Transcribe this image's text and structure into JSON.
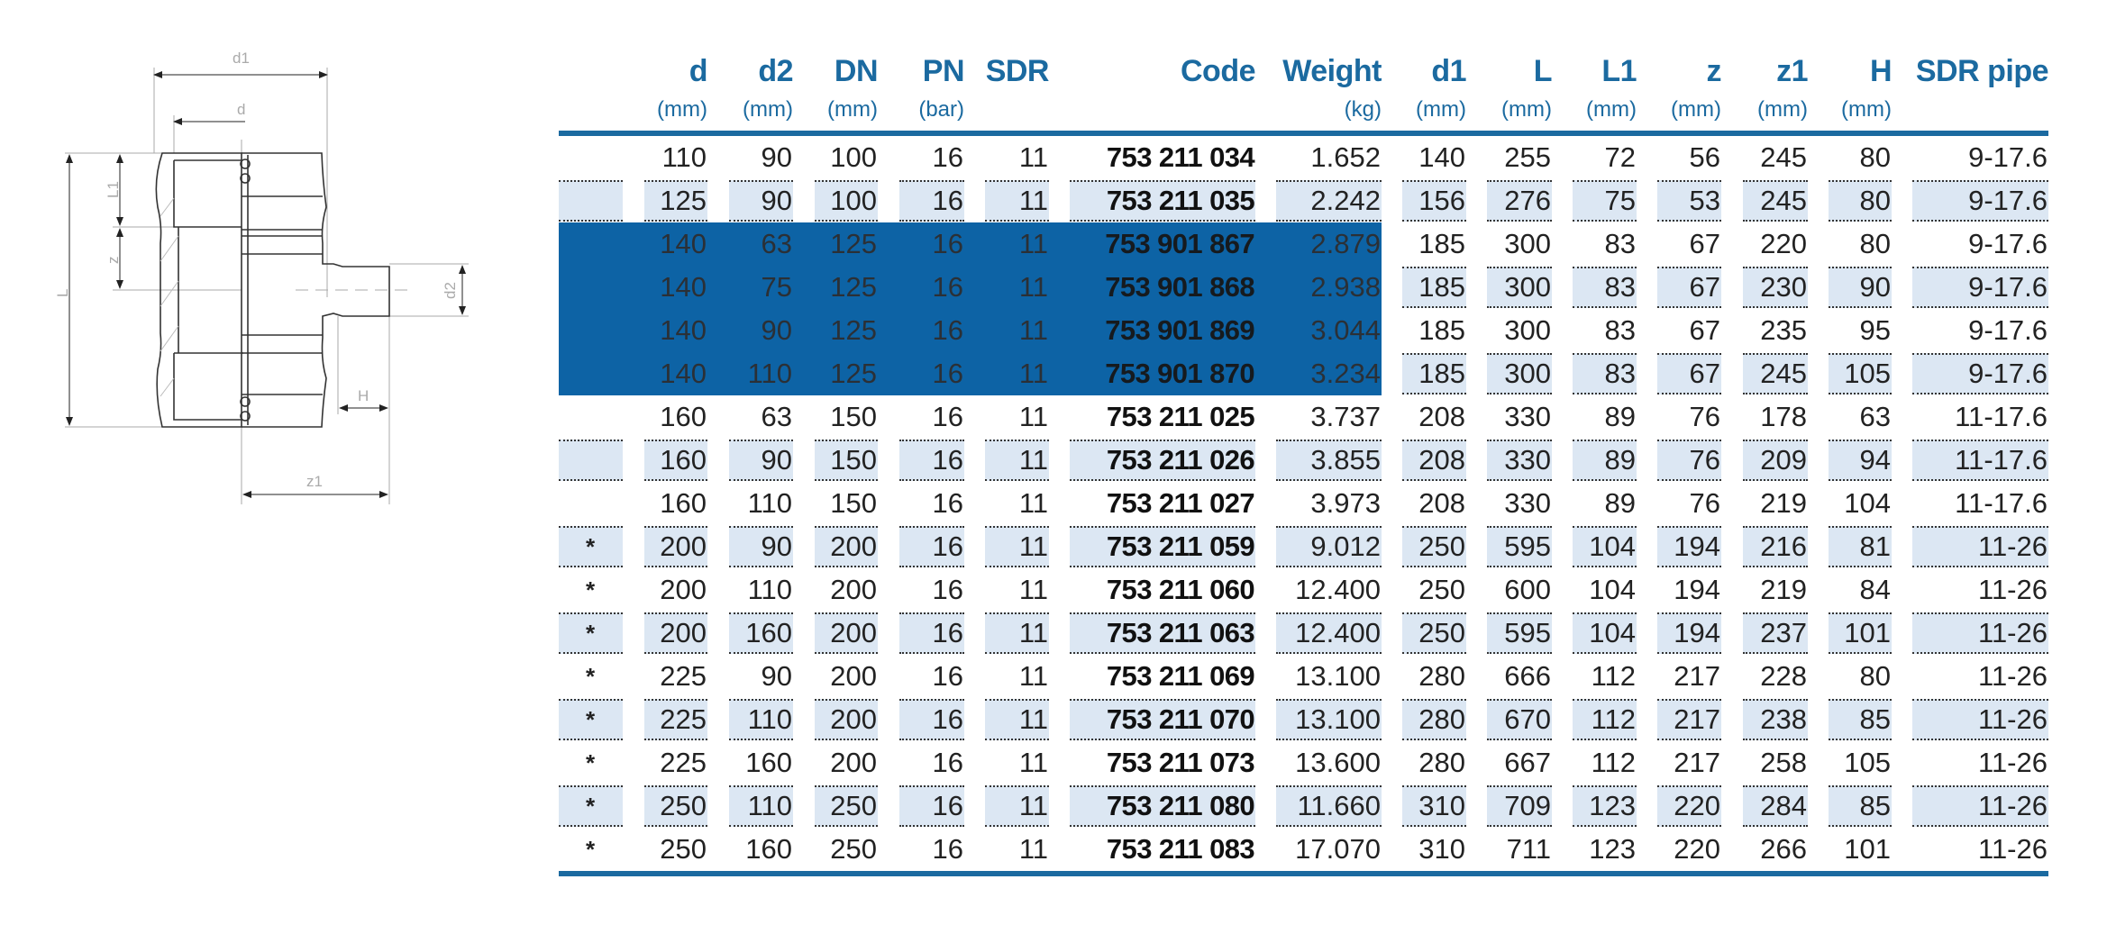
{
  "drawing": {
    "labels": {
      "d1": "d1",
      "d": "d",
      "L": "L",
      "L1": "L1",
      "z": "z",
      "d2": "d2",
      "H": "H",
      "z1": "z1"
    }
  },
  "table": {
    "headers": [
      {
        "label": "",
        "unit": ""
      },
      {
        "label": "d",
        "unit": "(mm)"
      },
      {
        "label": "d2",
        "unit": "(mm)"
      },
      {
        "label": "DN",
        "unit": "(mm)"
      },
      {
        "label": "PN",
        "unit": "(bar)"
      },
      {
        "label": "SDR",
        "unit": ""
      },
      {
        "label": "Code",
        "unit": ""
      },
      {
        "label": "Weight",
        "unit": "(kg)"
      },
      {
        "label": "d1",
        "unit": "(mm)"
      },
      {
        "label": "L",
        "unit": "(mm)"
      },
      {
        "label": "L1",
        "unit": "(mm)"
      },
      {
        "label": "z",
        "unit": "(mm)"
      },
      {
        "label": "z1",
        "unit": "(mm)"
      },
      {
        "label": "H",
        "unit": "(mm)"
      },
      {
        "label": "SDR pipe",
        "unit": ""
      }
    ],
    "highlighted_rows": [
      2,
      3,
      4,
      5
    ],
    "highlight_color": "#0d63a5",
    "rows": [
      [
        "",
        "110",
        "90",
        "100",
        "16",
        "11",
        "753 211 034",
        "1.652",
        "140",
        "255",
        "72",
        "56",
        "245",
        "80",
        "9-17.6"
      ],
      [
        "",
        "125",
        "90",
        "100",
        "16",
        "11",
        "753 211 035",
        "2.242",
        "156",
        "276",
        "75",
        "53",
        "245",
        "80",
        "9-17.6"
      ],
      [
        "",
        "140",
        "63",
        "125",
        "16",
        "11",
        "753 901 867",
        "2.879",
        "185",
        "300",
        "83",
        "67",
        "220",
        "80",
        "9-17.6"
      ],
      [
        "",
        "140",
        "75",
        "125",
        "16",
        "11",
        "753 901 868",
        "2.938",
        "185",
        "300",
        "83",
        "67",
        "230",
        "90",
        "9-17.6"
      ],
      [
        "",
        "140",
        "90",
        "125",
        "16",
        "11",
        "753 901 869",
        "3.044",
        "185",
        "300",
        "83",
        "67",
        "235",
        "95",
        "9-17.6"
      ],
      [
        "",
        "140",
        "110",
        "125",
        "16",
        "11",
        "753 901 870",
        "3.234",
        "185",
        "300",
        "83",
        "67",
        "245",
        "105",
        "9-17.6"
      ],
      [
        "",
        "160",
        "63",
        "150",
        "16",
        "11",
        "753 211 025",
        "3.737",
        "208",
        "330",
        "89",
        "76",
        "178",
        "63",
        "11-17.6"
      ],
      [
        "",
        "160",
        "90",
        "150",
        "16",
        "11",
        "753 211 026",
        "3.855",
        "208",
        "330",
        "89",
        "76",
        "209",
        "94",
        "11-17.6"
      ],
      [
        "",
        "160",
        "110",
        "150",
        "16",
        "11",
        "753 211 027",
        "3.973",
        "208",
        "330",
        "89",
        "76",
        "219",
        "104",
        "11-17.6"
      ],
      [
        "*",
        "200",
        "90",
        "200",
        "16",
        "11",
        "753 211 059",
        "9.012",
        "250",
        "595",
        "104",
        "194",
        "216",
        "81",
        "11-26"
      ],
      [
        "*",
        "200",
        "110",
        "200",
        "16",
        "11",
        "753 211 060",
        "12.400",
        "250",
        "600",
        "104",
        "194",
        "219",
        "84",
        "11-26"
      ],
      [
        "*",
        "200",
        "160",
        "200",
        "16",
        "11",
        "753 211 063",
        "12.400",
        "250",
        "595",
        "104",
        "194",
        "237",
        "101",
        "11-26"
      ],
      [
        "*",
        "225",
        "90",
        "200",
        "16",
        "11",
        "753 211 069",
        "13.100",
        "280",
        "666",
        "112",
        "217",
        "228",
        "80",
        "11-26"
      ],
      [
        "*",
        "225",
        "110",
        "200",
        "16",
        "11",
        "753 211 070",
        "13.100",
        "280",
        "670",
        "112",
        "217",
        "238",
        "85",
        "11-26"
      ],
      [
        "*",
        "225",
        "160",
        "200",
        "16",
        "11",
        "753 211 073",
        "13.600",
        "280",
        "667",
        "112",
        "217",
        "258",
        "105",
        "11-26"
      ],
      [
        "*",
        "250",
        "110",
        "250",
        "16",
        "11",
        "753 211 080",
        "11.660",
        "310",
        "709",
        "123",
        "220",
        "284",
        "85",
        "11-26"
      ],
      [
        "*",
        "250",
        "160",
        "250",
        "16",
        "11",
        "753 211 083",
        "17.070",
        "310",
        "711",
        "123",
        "220",
        "266",
        "101",
        "11-26"
      ]
    ]
  }
}
